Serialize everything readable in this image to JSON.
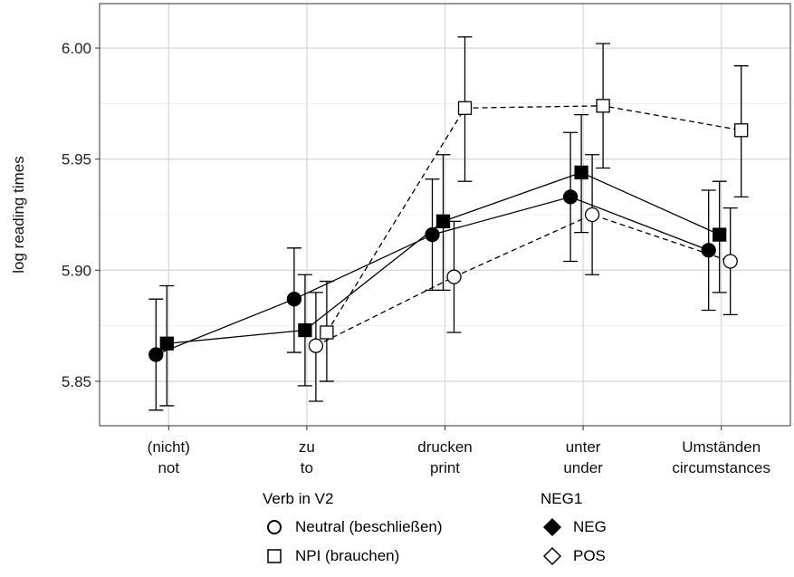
{
  "chart_data": {
    "type": "line",
    "ylabel": "log reading times",
    "xlabel": "",
    "ylim": [
      5.83,
      6.02
    ],
    "yticks": [
      5.85,
      5.9,
      5.95,
      6.0
    ],
    "ytick_labels": [
      "5.85",
      "5.90",
      "5.95",
      "6.00"
    ],
    "categories": [
      {
        "line1": "(nicht)",
        "line2": "not"
      },
      {
        "line1": "zu",
        "line2": "to"
      },
      {
        "line1": "drucken",
        "line2": "print"
      },
      {
        "line1": "unter",
        "line2": "under"
      },
      {
        "line1": "Umständen",
        "line2": "circumstances"
      }
    ],
    "grid": true,
    "series": [
      {
        "verb": "Neutral",
        "neg": "NEG",
        "marker": "circle",
        "fill": "#000000",
        "linestyle": "solid",
        "values": [
          5.862,
          5.887,
          5.916,
          5.933,
          5.909
        ],
        "lower": [
          5.837,
          5.863,
          5.891,
          5.904,
          5.882
        ],
        "upper": [
          5.887,
          5.91,
          5.941,
          5.962,
          5.936
        ]
      },
      {
        "verb": "NPI",
        "neg": "NEG",
        "marker": "square",
        "fill": "#000000",
        "linestyle": "solid",
        "values": [
          5.867,
          5.873,
          5.922,
          5.944,
          5.916
        ],
        "lower": [
          5.839,
          5.848,
          5.891,
          5.917,
          5.89
        ],
        "upper": [
          5.893,
          5.898,
          5.952,
          5.97,
          5.94
        ]
      },
      {
        "verb": "Neutral",
        "neg": "POS",
        "marker": "circle",
        "fill": "#ffffff",
        "linestyle": "dashed",
        "values": [
          null,
          5.866,
          5.897,
          5.925,
          5.904
        ],
        "lower": [
          null,
          5.841,
          5.872,
          5.898,
          5.88
        ],
        "upper": [
          null,
          5.89,
          5.922,
          5.952,
          5.928
        ]
      },
      {
        "verb": "NPI",
        "neg": "POS",
        "marker": "square",
        "fill": "#ffffff",
        "linestyle": "dashed",
        "values": [
          null,
          5.872,
          5.973,
          5.974,
          5.963
        ],
        "lower": [
          null,
          5.85,
          5.94,
          5.946,
          5.933
        ],
        "upper": [
          null,
          5.895,
          6.005,
          6.002,
          5.992
        ]
      }
    ]
  },
  "legend": {
    "verb_title": "Verb in V2",
    "verb_items": [
      {
        "label": "Neutral (beschließen)",
        "icon": "circle"
      },
      {
        "label": "NPI (brauchen)",
        "icon": "square"
      }
    ],
    "neg_title": "NEG1",
    "neg_items": [
      {
        "label": "NEG",
        "icon": "filled-diamond"
      },
      {
        "label": "POS",
        "icon": "open-diamond"
      }
    ]
  }
}
